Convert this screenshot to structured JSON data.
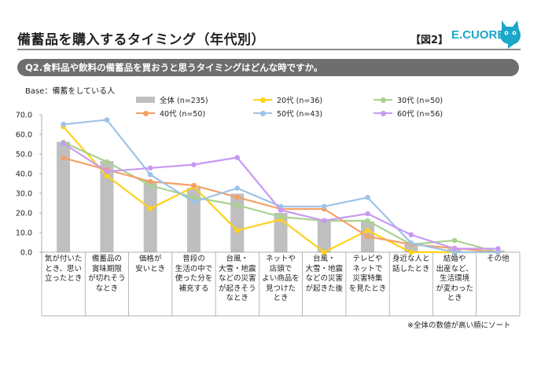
{
  "header": {
    "title": "備蓄品を購入するタイミング（年代別）",
    "fig_label": "【図2】",
    "logo_text": "E.CUORE"
  },
  "question": "Q2.食料品や飲料の備蓄品を買おうと思うタイミングはどんな時ですか。",
  "base": "Base：備蓄をしている人",
  "note": "※全体の数値が高い順にソート",
  "chart_data": {
    "type": "bar",
    "categories": [
      "気が付いたとき、思い立ったとき",
      "備蓄品の賞味期限が切れそうなとき",
      "価格が安いとき",
      "普段の生活の中で使った分を補充する",
      "台風・大雪・地震などの災害が起きそうなとき",
      "ネットや店頭でよい商品を見つけたとき",
      "台風・大雪・地震などの災害が起きた後",
      "テレビやネットで災害特集を見たとき",
      "身近な人と話したとき",
      "結婚や出産など、生活環境が変わったとき",
      "その他"
    ],
    "category_lines": [
      [
        "気が付いた",
        "とき、思い",
        "立ったとき"
      ],
      [
        "備蓄品の",
        "賞味期限",
        "が切れそう",
        "なとき"
      ],
      [
        "価格が",
        "安いとき"
      ],
      [
        "普段の",
        "生活の中で",
        "使った分を",
        "補充する"
      ],
      [
        "台風・",
        "大雪・地震",
        "などの災害",
        "が起きそう",
        "なとき"
      ],
      [
        "ネットや",
        "店頭で",
        "よい商品を",
        "見つけた",
        "とき"
      ],
      [
        "台風・",
        "大雪・地震",
        "などの災害",
        "が起きた後"
      ],
      [
        "テレビや",
        "ネットで",
        "災害特集",
        "を見たとき"
      ],
      [
        "身近な人と",
        "話したとき"
      ],
      [
        "結婚や",
        "出産など、",
        "生活環境",
        "が変わった",
        "とき"
      ],
      [
        "その他"
      ]
    ],
    "ylim": [
      0,
      70
    ],
    "yticks": [
      "0.0",
      "10.0",
      "20.0",
      "30.0",
      "40.0",
      "50.0",
      "60.0",
      "70.0"
    ],
    "bar_series": {
      "name": "全体 (n=235)",
      "color": "#bfbfbf",
      "values": [
        56.2,
        46.4,
        36.2,
        32.8,
        29.8,
        20.0,
        16.2,
        15.7,
        4.3,
        1.7,
        0.9
      ]
    },
    "series": [
      {
        "name": "20代 (n=36)",
        "color": "#ffd11a",
        "values": [
          63.9,
          38.9,
          22.2,
          33.3,
          11.1,
          16.7,
          0.0,
          11.1,
          0.0,
          0.0,
          0.0
        ]
      },
      {
        "name": "30代 (n=50)",
        "color": "#a9d18e",
        "values": [
          56.0,
          46.0,
          34.0,
          28.0,
          24.0,
          18.0,
          16.0,
          16.0,
          4.0,
          6.0,
          0.0
        ]
      },
      {
        "name": "40代 (n=50)",
        "color": "#f4a065",
        "values": [
          48.0,
          42.0,
          36.0,
          34.0,
          28.0,
          22.0,
          22.0,
          8.0,
          4.0,
          2.0,
          0.0
        ]
      },
      {
        "name": "50代 (n=43)",
        "color": "#9dc3e6",
        "values": [
          65.1,
          67.4,
          39.5,
          25.6,
          32.6,
          23.3,
          23.3,
          27.9,
          4.7,
          0.0,
          0.0
        ]
      },
      {
        "name": "60代 (n=56)",
        "color": "#c89af2",
        "values": [
          55.4,
          41.1,
          42.9,
          44.6,
          48.2,
          21.4,
          16.1,
          19.6,
          8.9,
          1.8,
          1.8
        ]
      }
    ],
    "legend_placement": "top",
    "grid": false
  }
}
